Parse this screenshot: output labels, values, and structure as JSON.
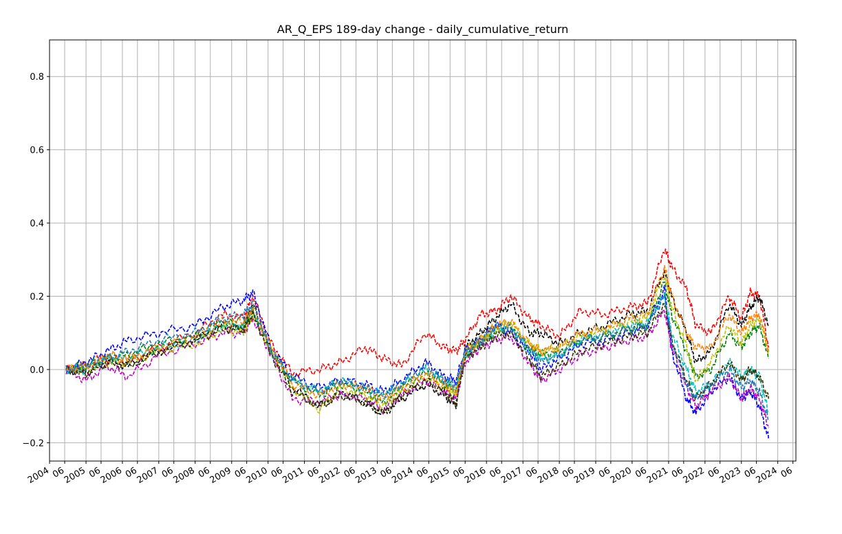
{
  "chart_data": {
    "type": "line",
    "title": "AR_Q_EPS 189-day change - daily_cumulative_return",
    "xlabel": "",
    "ylabel": "",
    "xlim": [
      "2004-01-01",
      "2024-07-01"
    ],
    "ylim": [
      -0.25,
      0.9
    ],
    "grid": true,
    "line_style": "dashed",
    "yticks": [
      -0.2,
      0.0,
      0.2,
      0.4,
      0.6,
      0.8
    ],
    "ytick_labels": [
      "−0.2",
      "0.0",
      "0.2",
      "0.4",
      "0.6",
      "0.8"
    ],
    "year_ticks": [
      "2004",
      "2005",
      "2006",
      "2007",
      "2008",
      "2009",
      "2010",
      "2011",
      "2012",
      "2013",
      "2014",
      "2015",
      "2016",
      "2017",
      "2018",
      "2019",
      "2020",
      "2021",
      "2022",
      "2023",
      "2024"
    ],
    "mid_tick_label": "06",
    "colors": [
      "#ff0000",
      "#000000",
      "#0000ff",
      "#008000",
      "#00bfbf",
      "#bf00bf",
      "#bfbf00",
      "#ff7f00",
      "#1f77b4",
      "#2ca02c",
      "#d62728",
      "#9467bd",
      "#333300",
      "#7f7f7f",
      "#17becf"
    ],
    "series": [
      {
        "color": "#ff0000",
        "x": [
          "2004-06-15",
          "2005-01-01",
          "2005-08-01",
          "2006-03-01",
          "2007-01-01",
          "2008-01-01",
          "2008-10-01",
          "2009-05-01",
          "2009-08-01",
          "2010-02-01",
          "2010-09-01",
          "2011-06-01",
          "2012-01-01",
          "2012-09-01",
          "2013-03-01",
          "2013-09-01",
          "2014-05-01",
          "2014-11-01",
          "2015-03-01",
          "2015-06-01",
          "2015-11-01",
          "2016-04-01",
          "2016-09-01",
          "2017-03-01",
          "2017-07-01",
          "2018-01-01",
          "2018-08-01",
          "2019-04-01",
          "2019-12-01",
          "2020-06-01",
          "2020-11-20",
          "2021-02-01",
          "2021-07-01",
          "2021-10-01",
          "2022-03-01",
          "2022-09-01",
          "2023-01-01",
          "2023-04-01",
          "2023-07-01",
          "2023-10-01"
        ],
        "y": [
          0.0,
          0.01,
          0.03,
          0.02,
          0.06,
          0.1,
          0.15,
          0.14,
          0.2,
          0.07,
          -0.01,
          0.0,
          0.02,
          0.06,
          0.03,
          0.01,
          0.1,
          0.06,
          0.05,
          0.08,
          0.15,
          0.16,
          0.2,
          0.14,
          0.12,
          0.09,
          0.16,
          0.15,
          0.17,
          0.18,
          0.33,
          0.28,
          0.22,
          0.12,
          0.1,
          0.2,
          0.14,
          0.21,
          0.2,
          0.06
        ]
      },
      {
        "color": "#000000",
        "x": [
          "2004-06-15",
          "2005-01-01",
          "2005-08-01",
          "2006-03-01",
          "2007-01-01",
          "2008-01-01",
          "2008-10-01",
          "2009-05-01",
          "2009-08-01",
          "2010-02-01",
          "2010-09-01",
          "2011-06-01",
          "2012-01-01",
          "2012-09-01",
          "2013-03-01",
          "2013-09-01",
          "2014-05-01",
          "2014-11-01",
          "2015-03-01",
          "2015-06-01",
          "2015-11-01",
          "2016-04-01",
          "2016-09-01",
          "2017-03-01",
          "2017-07-01",
          "2018-01-01",
          "2018-08-01",
          "2019-04-01",
          "2019-12-01",
          "2020-06-01",
          "2020-11-20",
          "2021-02-01",
          "2021-07-01",
          "2021-10-01",
          "2022-03-01",
          "2022-09-01",
          "2023-01-01",
          "2023-04-01",
          "2023-07-01",
          "2023-10-01"
        ],
        "y": [
          0.0,
          -0.01,
          0.02,
          0.01,
          0.05,
          0.08,
          0.12,
          0.11,
          0.18,
          0.05,
          -0.05,
          -0.1,
          -0.06,
          -0.09,
          -0.12,
          -0.08,
          -0.04,
          -0.07,
          -0.1,
          0.06,
          0.1,
          0.14,
          0.18,
          0.1,
          0.1,
          0.07,
          0.1,
          0.12,
          0.15,
          0.16,
          0.27,
          0.2,
          0.1,
          0.02,
          0.05,
          0.18,
          0.12,
          0.17,
          0.2,
          0.12
        ]
      },
      {
        "color": "#0000ff",
        "x": [
          "2004-06-15",
          "2005-01-01",
          "2005-08-01",
          "2006-03-01",
          "2007-01-01",
          "2008-01-01",
          "2008-10-01",
          "2009-05-01",
          "2009-08-01",
          "2010-02-01",
          "2010-09-01",
          "2011-06-01",
          "2012-01-01",
          "2012-09-01",
          "2013-03-01",
          "2013-09-01",
          "2014-05-01",
          "2014-11-01",
          "2015-03-01",
          "2015-06-01",
          "2015-11-01",
          "2016-04-01",
          "2016-09-01",
          "2017-03-01",
          "2017-07-01",
          "2018-01-01",
          "2018-08-01",
          "2019-04-01",
          "2019-12-01",
          "2020-06-01",
          "2020-11-20",
          "2021-02-01",
          "2021-07-01",
          "2021-10-01",
          "2022-03-01",
          "2022-09-01",
          "2023-01-01",
          "2023-04-01",
          "2023-07-01",
          "2023-10-01"
        ],
        "y": [
          0.0,
          0.02,
          0.05,
          0.08,
          0.1,
          0.12,
          0.17,
          0.19,
          0.21,
          0.06,
          -0.02,
          -0.05,
          -0.03,
          -0.04,
          -0.06,
          -0.03,
          0.02,
          -0.02,
          -0.03,
          0.05,
          0.08,
          0.12,
          0.1,
          0.05,
          0.0,
          0.03,
          0.07,
          0.08,
          0.1,
          0.12,
          0.22,
          0.05,
          -0.08,
          -0.12,
          -0.06,
          -0.02,
          -0.08,
          -0.06,
          -0.1,
          -0.19
        ]
      },
      {
        "color": "#008000",
        "x": [
          "2004-06-15",
          "2005-01-01",
          "2005-08-01",
          "2006-03-01",
          "2007-01-01",
          "2008-01-01",
          "2008-10-01",
          "2009-05-01",
          "2009-08-01",
          "2010-02-01",
          "2010-09-01",
          "2011-06-01",
          "2012-01-01",
          "2012-09-01",
          "2013-03-01",
          "2013-09-01",
          "2014-05-01",
          "2014-11-01",
          "2015-03-01",
          "2015-06-01",
          "2015-11-01",
          "2016-04-01",
          "2016-09-01",
          "2017-03-01",
          "2017-07-01",
          "2018-01-01",
          "2018-08-01",
          "2019-04-01",
          "2019-12-01",
          "2020-06-01",
          "2020-11-20",
          "2021-02-01",
          "2021-07-01",
          "2021-10-01",
          "2022-03-01",
          "2022-09-01",
          "2023-01-01",
          "2023-04-01",
          "2023-07-01",
          "2023-10-01"
        ],
        "y": [
          0.0,
          0.01,
          0.03,
          0.04,
          0.07,
          0.09,
          0.13,
          0.12,
          0.16,
          0.05,
          -0.03,
          -0.07,
          -0.04,
          -0.06,
          -0.09,
          -0.05,
          -0.01,
          -0.04,
          -0.06,
          0.04,
          0.07,
          0.1,
          0.12,
          0.06,
          0.04,
          0.05,
          0.08,
          0.09,
          0.11,
          0.12,
          0.24,
          0.15,
          0.05,
          -0.02,
          0.0,
          0.1,
          0.06,
          0.1,
          0.12,
          0.03
        ]
      },
      {
        "color": "#00bfbf",
        "x": [
          "2004-06-15",
          "2005-01-01",
          "2005-08-01",
          "2006-03-01",
          "2007-01-01",
          "2008-01-01",
          "2008-10-01",
          "2009-05-01",
          "2009-08-01",
          "2010-02-01",
          "2010-09-01",
          "2011-06-01",
          "2012-01-01",
          "2012-09-01",
          "2013-03-01",
          "2013-09-01",
          "2014-05-01",
          "2014-11-01",
          "2015-03-01",
          "2015-06-01",
          "2015-11-01",
          "2016-04-01",
          "2016-09-01",
          "2017-03-01",
          "2017-07-01",
          "2018-01-01",
          "2018-08-01",
          "2019-04-01",
          "2019-12-01",
          "2020-06-01",
          "2020-11-20",
          "2021-02-01",
          "2021-07-01",
          "2021-10-01",
          "2022-03-01",
          "2022-09-01",
          "2023-01-01",
          "2023-04-01",
          "2023-07-01",
          "2023-10-01"
        ],
        "y": [
          0.0,
          0.0,
          0.03,
          0.03,
          0.06,
          0.08,
          0.12,
          0.12,
          0.16,
          0.05,
          -0.03,
          -0.06,
          -0.03,
          -0.05,
          -0.07,
          -0.04,
          0.0,
          -0.03,
          -0.05,
          0.04,
          0.07,
          0.11,
          0.12,
          0.05,
          0.03,
          0.04,
          0.08,
          0.1,
          0.12,
          0.13,
          0.2,
          0.1,
          0.0,
          -0.06,
          -0.04,
          0.02,
          -0.02,
          0.0,
          -0.02,
          -0.12
        ]
      },
      {
        "color": "#bf00bf",
        "x": [
          "2004-06-15",
          "2005-01-01",
          "2005-08-01",
          "2006-03-01",
          "2007-01-01",
          "2008-01-01",
          "2008-10-01",
          "2009-05-01",
          "2009-08-01",
          "2010-02-01",
          "2010-09-01",
          "2011-06-01",
          "2012-01-01",
          "2012-09-01",
          "2013-03-01",
          "2013-09-01",
          "2014-05-01",
          "2014-11-01",
          "2015-03-01",
          "2015-06-01",
          "2015-11-01",
          "2016-04-01",
          "2016-09-01",
          "2017-03-01",
          "2017-07-01",
          "2018-01-01",
          "2018-08-01",
          "2019-04-01",
          "2019-12-01",
          "2020-06-01",
          "2020-11-20",
          "2021-02-01",
          "2021-07-01",
          "2021-10-01",
          "2022-03-01",
          "2022-09-01",
          "2023-01-01",
          "2023-04-01",
          "2023-07-01",
          "2023-10-01"
        ],
        "y": [
          0.0,
          -0.03,
          0.01,
          -0.02,
          0.04,
          0.07,
          0.1,
          0.1,
          0.14,
          0.04,
          -0.08,
          -0.09,
          -0.07,
          -0.08,
          -0.11,
          -0.07,
          -0.03,
          -0.06,
          -0.08,
          0.02,
          0.06,
          0.08,
          0.09,
          0.02,
          -0.03,
          0.0,
          0.04,
          0.06,
          0.08,
          0.09,
          0.16,
          0.06,
          -0.05,
          -0.1,
          -0.06,
          -0.02,
          -0.08,
          -0.05,
          -0.08,
          -0.16
        ]
      },
      {
        "color": "#bfbf00",
        "x": [
          "2004-06-15",
          "2005-01-01",
          "2005-08-01",
          "2006-03-01",
          "2007-01-01",
          "2008-01-01",
          "2008-10-01",
          "2009-05-01",
          "2009-08-01",
          "2010-02-01",
          "2010-09-01",
          "2011-06-01",
          "2012-01-01",
          "2012-09-01",
          "2013-03-01",
          "2013-09-01",
          "2014-05-01",
          "2014-11-01",
          "2015-03-01",
          "2015-06-01",
          "2015-11-01",
          "2016-04-01",
          "2016-09-01",
          "2017-03-01",
          "2017-07-01",
          "2018-01-01",
          "2018-08-01",
          "2019-04-01",
          "2019-12-01",
          "2020-06-01",
          "2020-11-20",
          "2021-02-01",
          "2021-07-01",
          "2021-10-01",
          "2022-03-01",
          "2022-09-01",
          "2023-01-01",
          "2023-04-01",
          "2023-07-01",
          "2023-10-01"
        ],
        "y": [
          0.0,
          0.0,
          0.02,
          0.02,
          0.05,
          0.07,
          0.11,
          0.1,
          0.15,
          0.05,
          -0.05,
          -0.11,
          -0.05,
          -0.07,
          -0.1,
          -0.06,
          -0.02,
          -0.05,
          -0.07,
          0.05,
          0.08,
          0.11,
          0.13,
          0.07,
          0.05,
          0.06,
          0.09,
          0.11,
          0.13,
          0.14,
          0.26,
          0.17,
          0.06,
          -0.03,
          0.02,
          0.12,
          0.07,
          0.12,
          0.14,
          0.05
        ]
      },
      {
        "color": "#ff7f00",
        "x": [
          "2004-06-15",
          "2005-01-01",
          "2005-08-01",
          "2006-03-01",
          "2007-01-01",
          "2008-01-01",
          "2008-10-01",
          "2009-05-01",
          "2009-08-01",
          "2010-02-01",
          "2010-09-01",
          "2011-06-01",
          "2012-01-01",
          "2012-09-01",
          "2013-03-01",
          "2013-09-01",
          "2014-05-01",
          "2014-11-01",
          "2015-03-01",
          "2015-06-01",
          "2015-11-01",
          "2016-04-01",
          "2016-09-01",
          "2017-03-01",
          "2017-07-01",
          "2018-01-01",
          "2018-08-01",
          "2019-04-01",
          "2019-12-01",
          "2020-06-01",
          "2020-11-20",
          "2021-02-01",
          "2021-07-01",
          "2021-10-01",
          "2022-03-01",
          "2022-09-01",
          "2023-01-01",
          "2023-04-01",
          "2023-07-01",
          "2023-10-01"
        ],
        "y": [
          0.0,
          0.01,
          0.04,
          0.03,
          0.06,
          0.09,
          0.13,
          0.13,
          0.17,
          0.06,
          -0.04,
          -0.07,
          -0.04,
          -0.05,
          -0.08,
          -0.05,
          -0.01,
          -0.04,
          -0.06,
          0.05,
          0.08,
          0.12,
          0.13,
          0.07,
          0.05,
          0.06,
          0.1,
          0.11,
          0.14,
          0.15,
          0.28,
          0.2,
          0.1,
          0.06,
          0.06,
          0.15,
          0.1,
          0.14,
          0.15,
          0.05
        ]
      },
      {
        "color": "#333300",
        "x": [
          "2004-06-15",
          "2005-01-01",
          "2005-08-01",
          "2006-03-01",
          "2007-01-01",
          "2008-01-01",
          "2008-10-01",
          "2009-05-01",
          "2009-08-01",
          "2010-02-01",
          "2010-09-01",
          "2011-06-01",
          "2012-01-01",
          "2012-09-01",
          "2013-03-01",
          "2013-09-01",
          "2014-05-01",
          "2014-11-01",
          "2015-03-01",
          "2015-06-01",
          "2015-11-01",
          "2016-04-01",
          "2016-09-01",
          "2017-03-01",
          "2017-07-01",
          "2018-01-01",
          "2018-08-01",
          "2019-04-01",
          "2019-12-01",
          "2020-06-01",
          "2020-11-20",
          "2021-02-01",
          "2021-07-01",
          "2021-10-01",
          "2022-03-01",
          "2022-09-01",
          "2023-01-01",
          "2023-04-01",
          "2023-07-01",
          "2023-10-01"
        ],
        "y": [
          0.0,
          -0.01,
          0.02,
          0.01,
          0.05,
          0.08,
          0.11,
          0.11,
          0.15,
          0.04,
          -0.06,
          -0.1,
          -0.07,
          -0.09,
          -0.12,
          -0.07,
          -0.03,
          -0.06,
          -0.09,
          0.03,
          0.06,
          0.09,
          0.1,
          0.03,
          -0.02,
          0.01,
          0.05,
          0.07,
          0.09,
          0.1,
          0.18,
          0.08,
          -0.03,
          -0.08,
          -0.04,
          0.02,
          -0.03,
          0.0,
          -0.02,
          -0.08
        ]
      },
      {
        "color": "#1f77b4",
        "x": [
          "2004-06-15",
          "2005-01-01",
          "2005-08-01",
          "2006-03-01",
          "2007-01-01",
          "2008-01-01",
          "2008-10-01",
          "2009-05-01",
          "2009-08-01",
          "2010-02-01",
          "2010-09-01",
          "2011-06-01",
          "2012-01-01",
          "2012-09-01",
          "2013-03-01",
          "2013-09-01",
          "2014-05-01",
          "2014-11-01",
          "2015-03-01",
          "2015-06-01",
          "2015-11-01",
          "2016-04-01",
          "2016-09-01",
          "2017-03-01",
          "2017-07-01",
          "2018-01-01",
          "2018-08-01",
          "2019-04-01",
          "2019-12-01",
          "2020-06-01",
          "2020-11-20",
          "2021-02-01",
          "2021-07-01",
          "2021-10-01",
          "2022-03-01",
          "2022-09-01",
          "2023-01-01",
          "2023-04-01",
          "2023-07-01",
          "2023-10-01"
        ],
        "y": [
          0.0,
          0.01,
          0.03,
          0.05,
          0.08,
          0.1,
          0.14,
          0.15,
          0.18,
          0.05,
          -0.03,
          -0.06,
          -0.03,
          -0.05,
          -0.07,
          -0.04,
          0.01,
          -0.03,
          -0.04,
          0.05,
          0.08,
          0.12,
          0.11,
          0.06,
          0.02,
          0.04,
          0.08,
          0.09,
          0.11,
          0.12,
          0.2,
          0.08,
          -0.04,
          -0.08,
          -0.04,
          0.0,
          -0.05,
          -0.03,
          -0.06,
          -0.14
        ]
      }
    ]
  }
}
